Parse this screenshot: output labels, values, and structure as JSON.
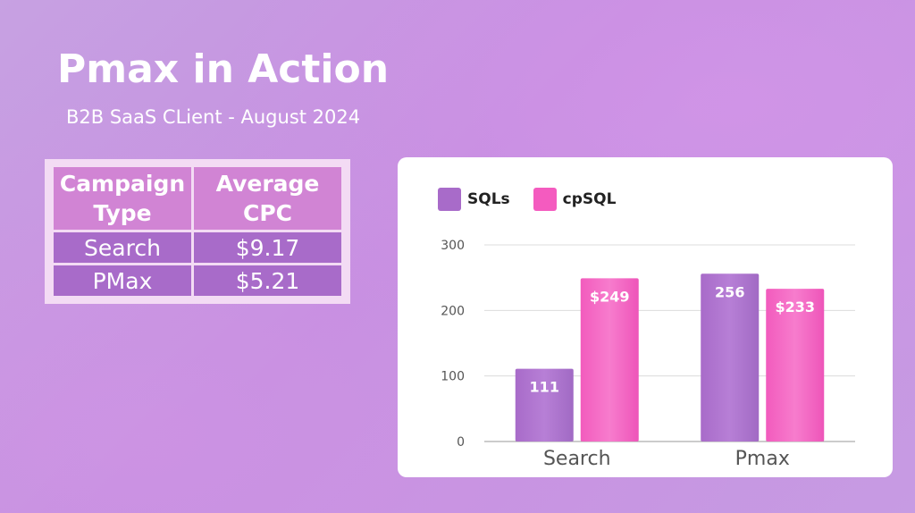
{
  "slide": {
    "title": "Pmax in Action",
    "subtitle": "B2B SaaS CLient - August 2024"
  },
  "cpc_table": {
    "headers": [
      "Campaign\nType",
      "Average\nCPC"
    ],
    "rows": [
      [
        "Search",
        "$9.17"
      ],
      [
        "PMax",
        "$5.21"
      ]
    ]
  },
  "colors": {
    "sqls": "#a86bc9",
    "cpsql": "#f45bbf"
  },
  "chart_data": {
    "type": "bar",
    "categories": [
      "Search",
      "Pmax"
    ],
    "series": [
      {
        "name": "SQLs",
        "values": [
          111,
          256
        ],
        "labels": [
          "111",
          "256"
        ]
      },
      {
        "name": "cpSQL",
        "values": [
          249,
          233
        ],
        "labels": [
          "$249",
          "$233"
        ]
      }
    ],
    "ylim": [
      0,
      300
    ],
    "yticks": [
      0,
      100,
      200,
      300
    ],
    "legend": "top-left",
    "grid": true
  }
}
